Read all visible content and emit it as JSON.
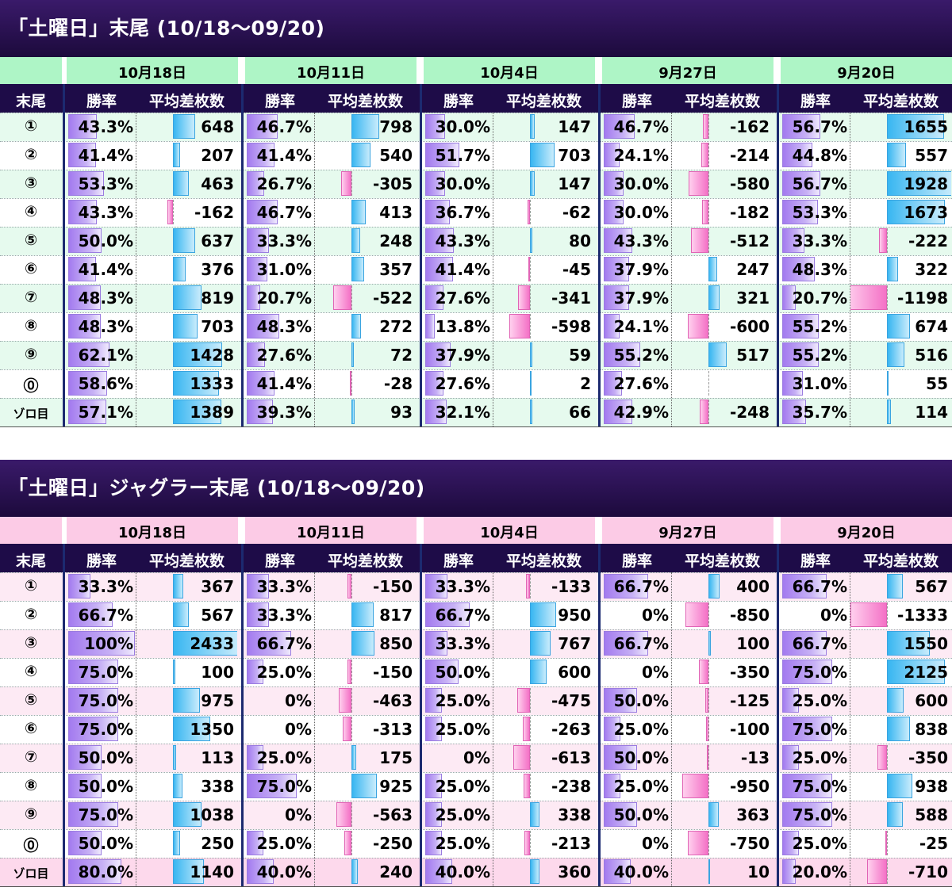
{
  "tables": [
    {
      "title": "「土曜日」末尾 (10/18～09/20)",
      "theme": {
        "date_header_bg": "#aef5c6",
        "row_odd_bg": "#e6faee",
        "row_even_bg": "#ffffff",
        "bottom_bg": "#ffffff"
      },
      "dates": [
        "10月18日",
        "10月11日",
        "10月4日",
        "9月27日",
        "9月20日"
      ],
      "column_headers": {
        "matsubi": "末尾",
        "rate": "勝率",
        "diff": "平均差枚数"
      },
      "rows": [
        {
          "label": "①",
          "rate": [
            "43.3%",
            "46.7%",
            "30.0%",
            "46.7%",
            "56.7%"
          ],
          "rate_value": [
            43.3,
            46.7,
            30.0,
            46.7,
            56.7
          ],
          "diff": [
            648,
            798,
            147,
            -162,
            1655
          ]
        },
        {
          "label": "②",
          "rate": [
            "41.4%",
            "41.4%",
            "51.7%",
            "24.1%",
            "44.8%"
          ],
          "rate_value": [
            41.4,
            41.4,
            51.7,
            24.1,
            44.8
          ],
          "diff": [
            207,
            540,
            703,
            -214,
            557
          ]
        },
        {
          "label": "③",
          "rate": [
            "53.3%",
            "26.7%",
            "30.0%",
            "30.0%",
            "56.7%"
          ],
          "rate_value": [
            53.3,
            26.7,
            30.0,
            30.0,
            56.7
          ],
          "diff": [
            463,
            -305,
            147,
            -580,
            1928
          ]
        },
        {
          "label": "④",
          "rate": [
            "43.3%",
            "46.7%",
            "36.7%",
            "30.0%",
            "53.3%"
          ],
          "rate_value": [
            43.3,
            46.7,
            36.7,
            30.0,
            53.3
          ],
          "diff": [
            -162,
            413,
            -62,
            -182,
            1673
          ]
        },
        {
          "label": "⑤",
          "rate": [
            "50.0%",
            "33.3%",
            "43.3%",
            "43.3%",
            "33.3%"
          ],
          "rate_value": [
            50.0,
            33.3,
            43.3,
            43.3,
            33.3
          ],
          "diff": [
            637,
            248,
            80,
            -512,
            -222
          ]
        },
        {
          "label": "⑥",
          "rate": [
            "41.4%",
            "31.0%",
            "41.4%",
            "37.9%",
            "48.3%"
          ],
          "rate_value": [
            41.4,
            31.0,
            41.4,
            37.9,
            48.3
          ],
          "diff": [
            376,
            357,
            -45,
            247,
            322
          ]
        },
        {
          "label": "⑦",
          "rate": [
            "48.3%",
            "20.7%",
            "27.6%",
            "37.9%",
            "20.7%"
          ],
          "rate_value": [
            48.3,
            20.7,
            27.6,
            37.9,
            20.7
          ],
          "diff": [
            819,
            -522,
            -341,
            321,
            -1198
          ]
        },
        {
          "label": "⑧",
          "rate": [
            "48.3%",
            "48.3%",
            "13.8%",
            "24.1%",
            "55.2%"
          ],
          "rate_value": [
            48.3,
            48.3,
            13.8,
            24.1,
            55.2
          ],
          "diff": [
            703,
            272,
            -598,
            -600,
            674
          ]
        },
        {
          "label": "⑨",
          "rate": [
            "62.1%",
            "27.6%",
            "37.9%",
            "55.2%",
            "55.2%"
          ],
          "rate_value": [
            62.1,
            27.6,
            37.9,
            55.2,
            55.2
          ],
          "diff": [
            1428,
            72,
            59,
            517,
            516
          ]
        },
        {
          "label": "⓪",
          "rate": [
            "58.6%",
            "41.4%",
            "27.6%",
            "27.6%",
            "31.0%"
          ],
          "rate_value": [
            58.6,
            41.4,
            27.6,
            27.6,
            31.0
          ],
          "diff": [
            1333,
            -28,
            2,
            null,
            55
          ]
        },
        {
          "label": "ゾロ目",
          "rate": [
            "57.1%",
            "39.3%",
            "32.1%",
            "42.9%",
            "35.7%"
          ],
          "rate_value": [
            57.1,
            39.3,
            32.1,
            42.9,
            35.7
          ],
          "diff": [
            1389,
            93,
            66,
            -248,
            114
          ]
        }
      ]
    },
    {
      "title": "「土曜日」ジャグラー末尾 (10/18～09/20)",
      "theme": {
        "date_header_bg": "#fccbe6",
        "row_odd_bg": "#fdeaf4",
        "row_even_bg": "#ffffff",
        "bottom_bg": "#fdd9ec"
      },
      "dates": [
        "10月18日",
        "10月11日",
        "10月4日",
        "9月27日",
        "9月20日"
      ],
      "column_headers": {
        "matsubi": "末尾",
        "rate": "勝率",
        "diff": "平均差枚数"
      },
      "rows": [
        {
          "label": "①",
          "rate": [
            "33.3%",
            "33.3%",
            "33.3%",
            "66.7%",
            "66.7%"
          ],
          "rate_value": [
            33.3,
            33.3,
            33.3,
            66.7,
            66.7
          ],
          "diff": [
            367,
            -150,
            -133,
            400,
            567
          ]
        },
        {
          "label": "②",
          "rate": [
            "66.7%",
            "33.3%",
            "66.7%",
            "0%",
            "0%"
          ],
          "rate_value": [
            66.7,
            33.3,
            66.7,
            0,
            0
          ],
          "diff": [
            567,
            817,
            950,
            -850,
            -1333
          ]
        },
        {
          "label": "③",
          "rate": [
            "100%",
            "66.7%",
            "33.3%",
            "66.7%",
            "66.7%"
          ],
          "rate_value": [
            100,
            66.7,
            33.3,
            66.7,
            66.7
          ],
          "diff": [
            2433,
            850,
            767,
            100,
            1550
          ]
        },
        {
          "label": "④",
          "rate": [
            "75.0%",
            "25.0%",
            "50.0%",
            "0%",
            "75.0%"
          ],
          "rate_value": [
            75.0,
            25.0,
            50.0,
            0,
            75.0
          ],
          "diff": [
            100,
            -150,
            600,
            -350,
            2125
          ]
        },
        {
          "label": "⑤",
          "rate": [
            "75.0%",
            "0%",
            "25.0%",
            "50.0%",
            "25.0%"
          ],
          "rate_value": [
            75.0,
            0,
            25.0,
            50.0,
            25.0
          ],
          "diff": [
            975,
            -463,
            -475,
            -125,
            600
          ]
        },
        {
          "label": "⑥",
          "rate": [
            "75.0%",
            "0%",
            "25.0%",
            "25.0%",
            "75.0%"
          ],
          "rate_value": [
            75.0,
            0,
            25.0,
            25.0,
            75.0
          ],
          "diff": [
            1350,
            -313,
            -263,
            -100,
            838
          ]
        },
        {
          "label": "⑦",
          "rate": [
            "50.0%",
            "25.0%",
            "0%",
            "50.0%",
            "25.0%"
          ],
          "rate_value": [
            50.0,
            25.0,
            0,
            50.0,
            25.0
          ],
          "diff": [
            113,
            175,
            -613,
            -13,
            -350
          ]
        },
        {
          "label": "⑧",
          "rate": [
            "50.0%",
            "75.0%",
            "25.0%",
            "25.0%",
            "75.0%"
          ],
          "rate_value": [
            50.0,
            75.0,
            25.0,
            25.0,
            75.0
          ],
          "diff": [
            338,
            925,
            -238,
            -950,
            938
          ]
        },
        {
          "label": "⑨",
          "rate": [
            "75.0%",
            "0%",
            "25.0%",
            "50.0%",
            "75.0%"
          ],
          "rate_value": [
            75.0,
            0,
            25.0,
            50.0,
            75.0
          ],
          "diff": [
            1038,
            -563,
            338,
            363,
            588
          ]
        },
        {
          "label": "⓪",
          "rate": [
            "50.0%",
            "25.0%",
            "25.0%",
            "0%",
            "25.0%"
          ],
          "rate_value": [
            50.0,
            25.0,
            25.0,
            0,
            25.0
          ],
          "diff": [
            250,
            -250,
            -213,
            -750,
            -25
          ]
        },
        {
          "label": "ゾロ目",
          "rate": [
            "80.0%",
            "40.0%",
            "40.0%",
            "40.0%",
            "20.0%"
          ],
          "rate_value": [
            80.0,
            40.0,
            40.0,
            40.0,
            20.0
          ],
          "diff": [
            1140,
            240,
            360,
            10,
            -710
          ]
        }
      ]
    }
  ],
  "chart_data": [
    {
      "type": "table",
      "title": "「土曜日」末尾 (10/18～09/20)",
      "categories": [
        "①",
        "②",
        "③",
        "④",
        "⑤",
        "⑥",
        "⑦",
        "⑧",
        "⑨",
        "⓪",
        "ゾロ目"
      ],
      "series": [
        {
          "name": "10月18日 勝率",
          "values": [
            43.3,
            41.4,
            53.3,
            43.3,
            50.0,
            41.4,
            48.3,
            48.3,
            62.1,
            58.6,
            57.1
          ]
        },
        {
          "name": "10月18日 平均差枚数",
          "values": [
            648,
            207,
            463,
            -162,
            637,
            376,
            819,
            703,
            1428,
            1333,
            1389
          ]
        },
        {
          "name": "10月11日 勝率",
          "values": [
            46.7,
            41.4,
            26.7,
            46.7,
            33.3,
            31.0,
            20.7,
            48.3,
            27.6,
            41.4,
            39.3
          ]
        },
        {
          "name": "10月11日 平均差枚数",
          "values": [
            798,
            540,
            -305,
            413,
            248,
            357,
            -522,
            272,
            72,
            -28,
            93
          ]
        },
        {
          "name": "10月4日 勝率",
          "values": [
            30.0,
            51.7,
            30.0,
            36.7,
            43.3,
            41.4,
            27.6,
            13.8,
            37.9,
            27.6,
            32.1
          ]
        },
        {
          "name": "10月4日 平均差枚数",
          "values": [
            147,
            703,
            147,
            -62,
            80,
            -45,
            -341,
            -598,
            59,
            2,
            66
          ]
        },
        {
          "name": "9月27日 勝率",
          "values": [
            46.7,
            24.1,
            30.0,
            30.0,
            43.3,
            37.9,
            37.9,
            24.1,
            55.2,
            27.6,
            42.9
          ]
        },
        {
          "name": "9月27日 平均差枚数",
          "values": [
            -162,
            -214,
            -580,
            -182,
            -512,
            247,
            321,
            -600,
            517,
            null,
            -248
          ]
        },
        {
          "name": "9月20日 勝率",
          "values": [
            56.7,
            44.8,
            56.7,
            53.3,
            33.3,
            48.3,
            20.7,
            55.2,
            55.2,
            31.0,
            35.7
          ]
        },
        {
          "name": "9月20日 平均差枚数",
          "values": [
            1655,
            557,
            1928,
            1673,
            -222,
            322,
            -1198,
            674,
            516,
            55,
            114
          ]
        }
      ]
    },
    {
      "type": "table",
      "title": "「土曜日」ジャグラー末尾 (10/18～09/20)",
      "categories": [
        "①",
        "②",
        "③",
        "④",
        "⑤",
        "⑥",
        "⑦",
        "⑧",
        "⑨",
        "⓪",
        "ゾロ目"
      ],
      "series": [
        {
          "name": "10月18日 勝率",
          "values": [
            33.3,
            66.7,
            100,
            75.0,
            75.0,
            75.0,
            50.0,
            50.0,
            75.0,
            50.0,
            80.0
          ]
        },
        {
          "name": "10月18日 平均差枚数",
          "values": [
            367,
            567,
            2433,
            100,
            975,
            1350,
            113,
            338,
            1038,
            250,
            1140
          ]
        },
        {
          "name": "10月11日 勝率",
          "values": [
            33.3,
            33.3,
            66.7,
            25.0,
            0,
            0,
            25.0,
            75.0,
            0,
            25.0,
            40.0
          ]
        },
        {
          "name": "10月11日 平均差枚数",
          "values": [
            -150,
            817,
            850,
            -150,
            -463,
            -313,
            175,
            925,
            -563,
            -250,
            240
          ]
        },
        {
          "name": "10月4日 勝率",
          "values": [
            33.3,
            66.7,
            33.3,
            50.0,
            25.0,
            25.0,
            0,
            25.0,
            25.0,
            25.0,
            40.0
          ]
        },
        {
          "name": "10月4日 平均差枚数",
          "values": [
            -133,
            950,
            767,
            600,
            -475,
            -263,
            -613,
            -238,
            338,
            -213,
            360
          ]
        },
        {
          "name": "9月27日 勝率",
          "values": [
            66.7,
            0,
            66.7,
            0,
            50.0,
            25.0,
            50.0,
            25.0,
            50.0,
            0,
            40.0
          ]
        },
        {
          "name": "9月27日 平均差枚数",
          "values": [
            400,
            -850,
            100,
            -350,
            -125,
            -100,
            -13,
            -950,
            363,
            -750,
            10
          ]
        },
        {
          "name": "9月20日 勝率",
          "values": [
            66.7,
            0,
            66.7,
            75.0,
            25.0,
            75.0,
            25.0,
            75.0,
            75.0,
            25.0,
            20.0
          ]
        },
        {
          "name": "9月20日 平均差枚数",
          "values": [
            567,
            -1333,
            1550,
            2125,
            600,
            838,
            -350,
            938,
            588,
            -25,
            -710
          ]
        }
      ]
    }
  ]
}
